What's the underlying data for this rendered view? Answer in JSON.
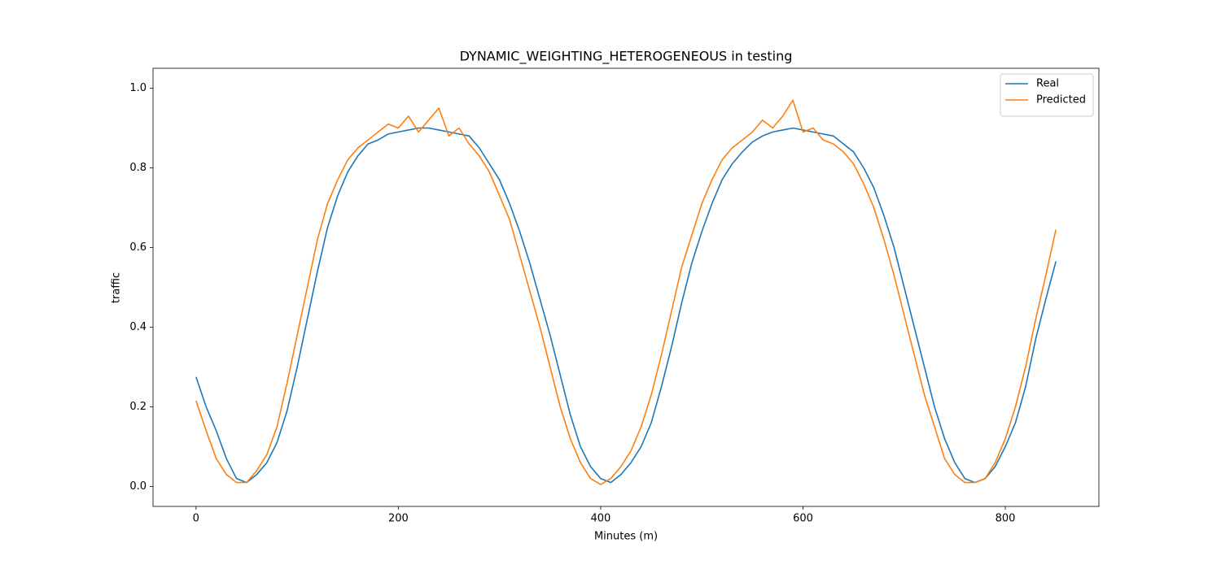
{
  "chart_data": {
    "type": "line",
    "title": "DYNAMIC_WEIGHTING_HETEROGENEOUS in testing",
    "x_label": "Minutes (m)",
    "y_label": "traffic",
    "x": [
      0,
      10,
      20,
      30,
      40,
      50,
      60,
      70,
      80,
      90,
      100,
      110,
      120,
      130,
      140,
      150,
      160,
      170,
      180,
      190,
      200,
      210,
      220,
      230,
      240,
      250,
      260,
      270,
      280,
      290,
      300,
      310,
      320,
      330,
      340,
      350,
      360,
      370,
      380,
      390,
      400,
      410,
      420,
      430,
      440,
      450,
      460,
      470,
      480,
      490,
      500,
      510,
      520,
      530,
      540,
      550,
      560,
      570,
      580,
      590,
      600,
      610,
      620,
      630,
      640,
      650,
      660,
      670,
      680,
      690,
      700,
      710,
      720,
      730,
      740,
      750,
      760,
      770,
      780,
      790,
      800,
      810,
      820,
      830,
      840,
      850
    ],
    "series": [
      {
        "name": "Real",
        "color": "#1f77b4",
        "values": [
          0.275,
          0.2,
          0.14,
          0.07,
          0.02,
          0.01,
          0.03,
          0.06,
          0.11,
          0.19,
          0.3,
          0.42,
          0.54,
          0.65,
          0.73,
          0.79,
          0.83,
          0.86,
          0.87,
          0.885,
          0.89,
          0.895,
          0.9,
          0.9,
          0.895,
          0.89,
          0.885,
          0.88,
          0.85,
          0.81,
          0.77,
          0.71,
          0.64,
          0.56,
          0.47,
          0.38,
          0.28,
          0.18,
          0.1,
          0.05,
          0.02,
          0.01,
          0.03,
          0.06,
          0.1,
          0.16,
          0.25,
          0.35,
          0.46,
          0.56,
          0.64,
          0.71,
          0.77,
          0.81,
          0.84,
          0.865,
          0.88,
          0.89,
          0.895,
          0.9,
          0.895,
          0.89,
          0.885,
          0.88,
          0.86,
          0.84,
          0.8,
          0.75,
          0.68,
          0.6,
          0.5,
          0.4,
          0.3,
          0.2,
          0.12,
          0.06,
          0.02,
          0.01,
          0.02,
          0.05,
          0.1,
          0.16,
          0.25,
          0.37,
          0.47,
          0.565
        ]
      },
      {
        "name": "Predicted",
        "color": "#ff7f0e",
        "values": [
          0.215,
          0.14,
          0.07,
          0.03,
          0.01,
          0.01,
          0.04,
          0.08,
          0.15,
          0.26,
          0.38,
          0.5,
          0.62,
          0.71,
          0.77,
          0.82,
          0.85,
          0.87,
          0.89,
          0.91,
          0.9,
          0.93,
          0.89,
          0.92,
          0.95,
          0.88,
          0.9,
          0.86,
          0.83,
          0.79,
          0.73,
          0.67,
          0.58,
          0.49,
          0.4,
          0.3,
          0.2,
          0.12,
          0.06,
          0.02,
          0.005,
          0.02,
          0.05,
          0.09,
          0.15,
          0.23,
          0.33,
          0.44,
          0.55,
          0.63,
          0.71,
          0.77,
          0.82,
          0.85,
          0.87,
          0.89,
          0.92,
          0.9,
          0.93,
          0.97,
          0.89,
          0.9,
          0.87,
          0.86,
          0.84,
          0.81,
          0.76,
          0.7,
          0.62,
          0.53,
          0.43,
          0.33,
          0.23,
          0.15,
          0.07,
          0.03,
          0.01,
          0.01,
          0.02,
          0.06,
          0.12,
          0.2,
          0.3,
          0.42,
          0.53,
          0.645
        ]
      }
    ],
    "xlim": [
      -42.5,
      892.5
    ],
    "ylim": [
      -0.05,
      1.05
    ],
    "xticks": [
      0,
      200,
      400,
      600,
      800
    ],
    "yticks": [
      {
        "value": 0,
        "label": "0.0"
      },
      0.2,
      0.4,
      0.6,
      0.8,
      {
        "value": 1,
        "label": "1.0"
      }
    ],
    "legend": "upper right"
  }
}
